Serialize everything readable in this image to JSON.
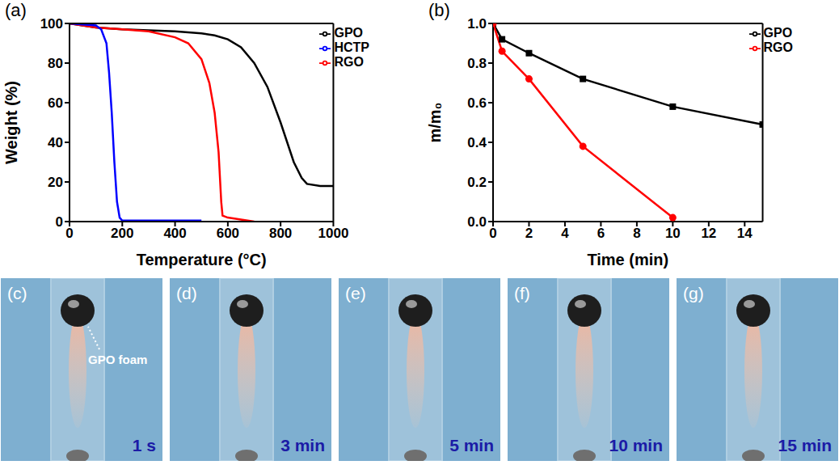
{
  "chart_data": [
    {
      "type": "line",
      "panel": "(a)",
      "x_label": "Temperature (°C)",
      "y_label": "Weight (%)",
      "xlim": [
        0,
        1000
      ],
      "xticks": [
        0,
        200,
        400,
        600,
        800,
        1000
      ],
      "ylim": [
        0,
        100
      ],
      "yticks": [
        0,
        20,
        40,
        60,
        80,
        100
      ],
      "legend": "upper right",
      "series": [
        {
          "name": "GPO",
          "color": "#000000",
          "marker": "none",
          "x": [
            0,
            100,
            200,
            300,
            400,
            500,
            550,
            600,
            650,
            700,
            750,
            800,
            850,
            880,
            900,
            950,
            1000
          ],
          "values": [
            100,
            98,
            97,
            96.5,
            96,
            95,
            94,
            92,
            88,
            80,
            68,
            50,
            30,
            22,
            19,
            18,
            18
          ]
        },
        {
          "name": "RGO",
          "color": "#ff0000",
          "marker": "none",
          "x": [
            0,
            100,
            200,
            300,
            400,
            450,
            500,
            530,
            550,
            565,
            575,
            580,
            600,
            700
          ],
          "values": [
            100,
            98,
            97,
            96,
            93,
            90,
            82,
            70,
            55,
            35,
            10,
            3,
            2,
            0
          ]
        },
        {
          "name": "HCTP",
          "color": "#0000ff",
          "marker": "none",
          "x": [
            0,
            100,
            120,
            140,
            150,
            160,
            170,
            180,
            190,
            200,
            300,
            500
          ],
          "values": [
            100,
            99,
            97,
            90,
            75,
            55,
            30,
            10,
            2,
            0.5,
            0.5,
            0.5
          ]
        }
      ]
    },
    {
      "type": "line",
      "panel": "(b)",
      "x_label": "Time (min)",
      "y_label": "m/m₀",
      "xlim": [
        0,
        15
      ],
      "xticks": [
        0,
        2,
        4,
        6,
        8,
        10,
        12,
        14
      ],
      "ylim": [
        0,
        1
      ],
      "yticks": [
        {
          "value": 0,
          "label": "0.0"
        },
        0.2,
        0.4,
        0.6,
        0.8,
        {
          "value": 1,
          "label": "1.0"
        }
      ],
      "legend": "upper right",
      "series": [
        {
          "name": "GPO",
          "color": "#000000",
          "marker": "square",
          "x": [
            0,
            0.5,
            2,
            5,
            10,
            15
          ],
          "values": [
            1,
            0.92,
            0.85,
            0.72,
            0.58,
            0.49
          ]
        },
        {
          "name": "RGO",
          "color": "#ff0000",
          "marker": "circle",
          "x": [
            0,
            0.5,
            2,
            5,
            10
          ],
          "values": [
            1,
            0.86,
            0.72,
            0.38,
            0.02
          ]
        }
      ]
    }
  ],
  "photos": [
    {
      "panel": "(c)",
      "time": "1 s",
      "annotation": "GPO foam"
    },
    {
      "panel": "(d)",
      "time": "3 min"
    },
    {
      "panel": "(e)",
      "time": "5 min"
    },
    {
      "panel": "(f)",
      "time": "10 min"
    },
    {
      "panel": "(g)",
      "time": "15 min"
    }
  ]
}
